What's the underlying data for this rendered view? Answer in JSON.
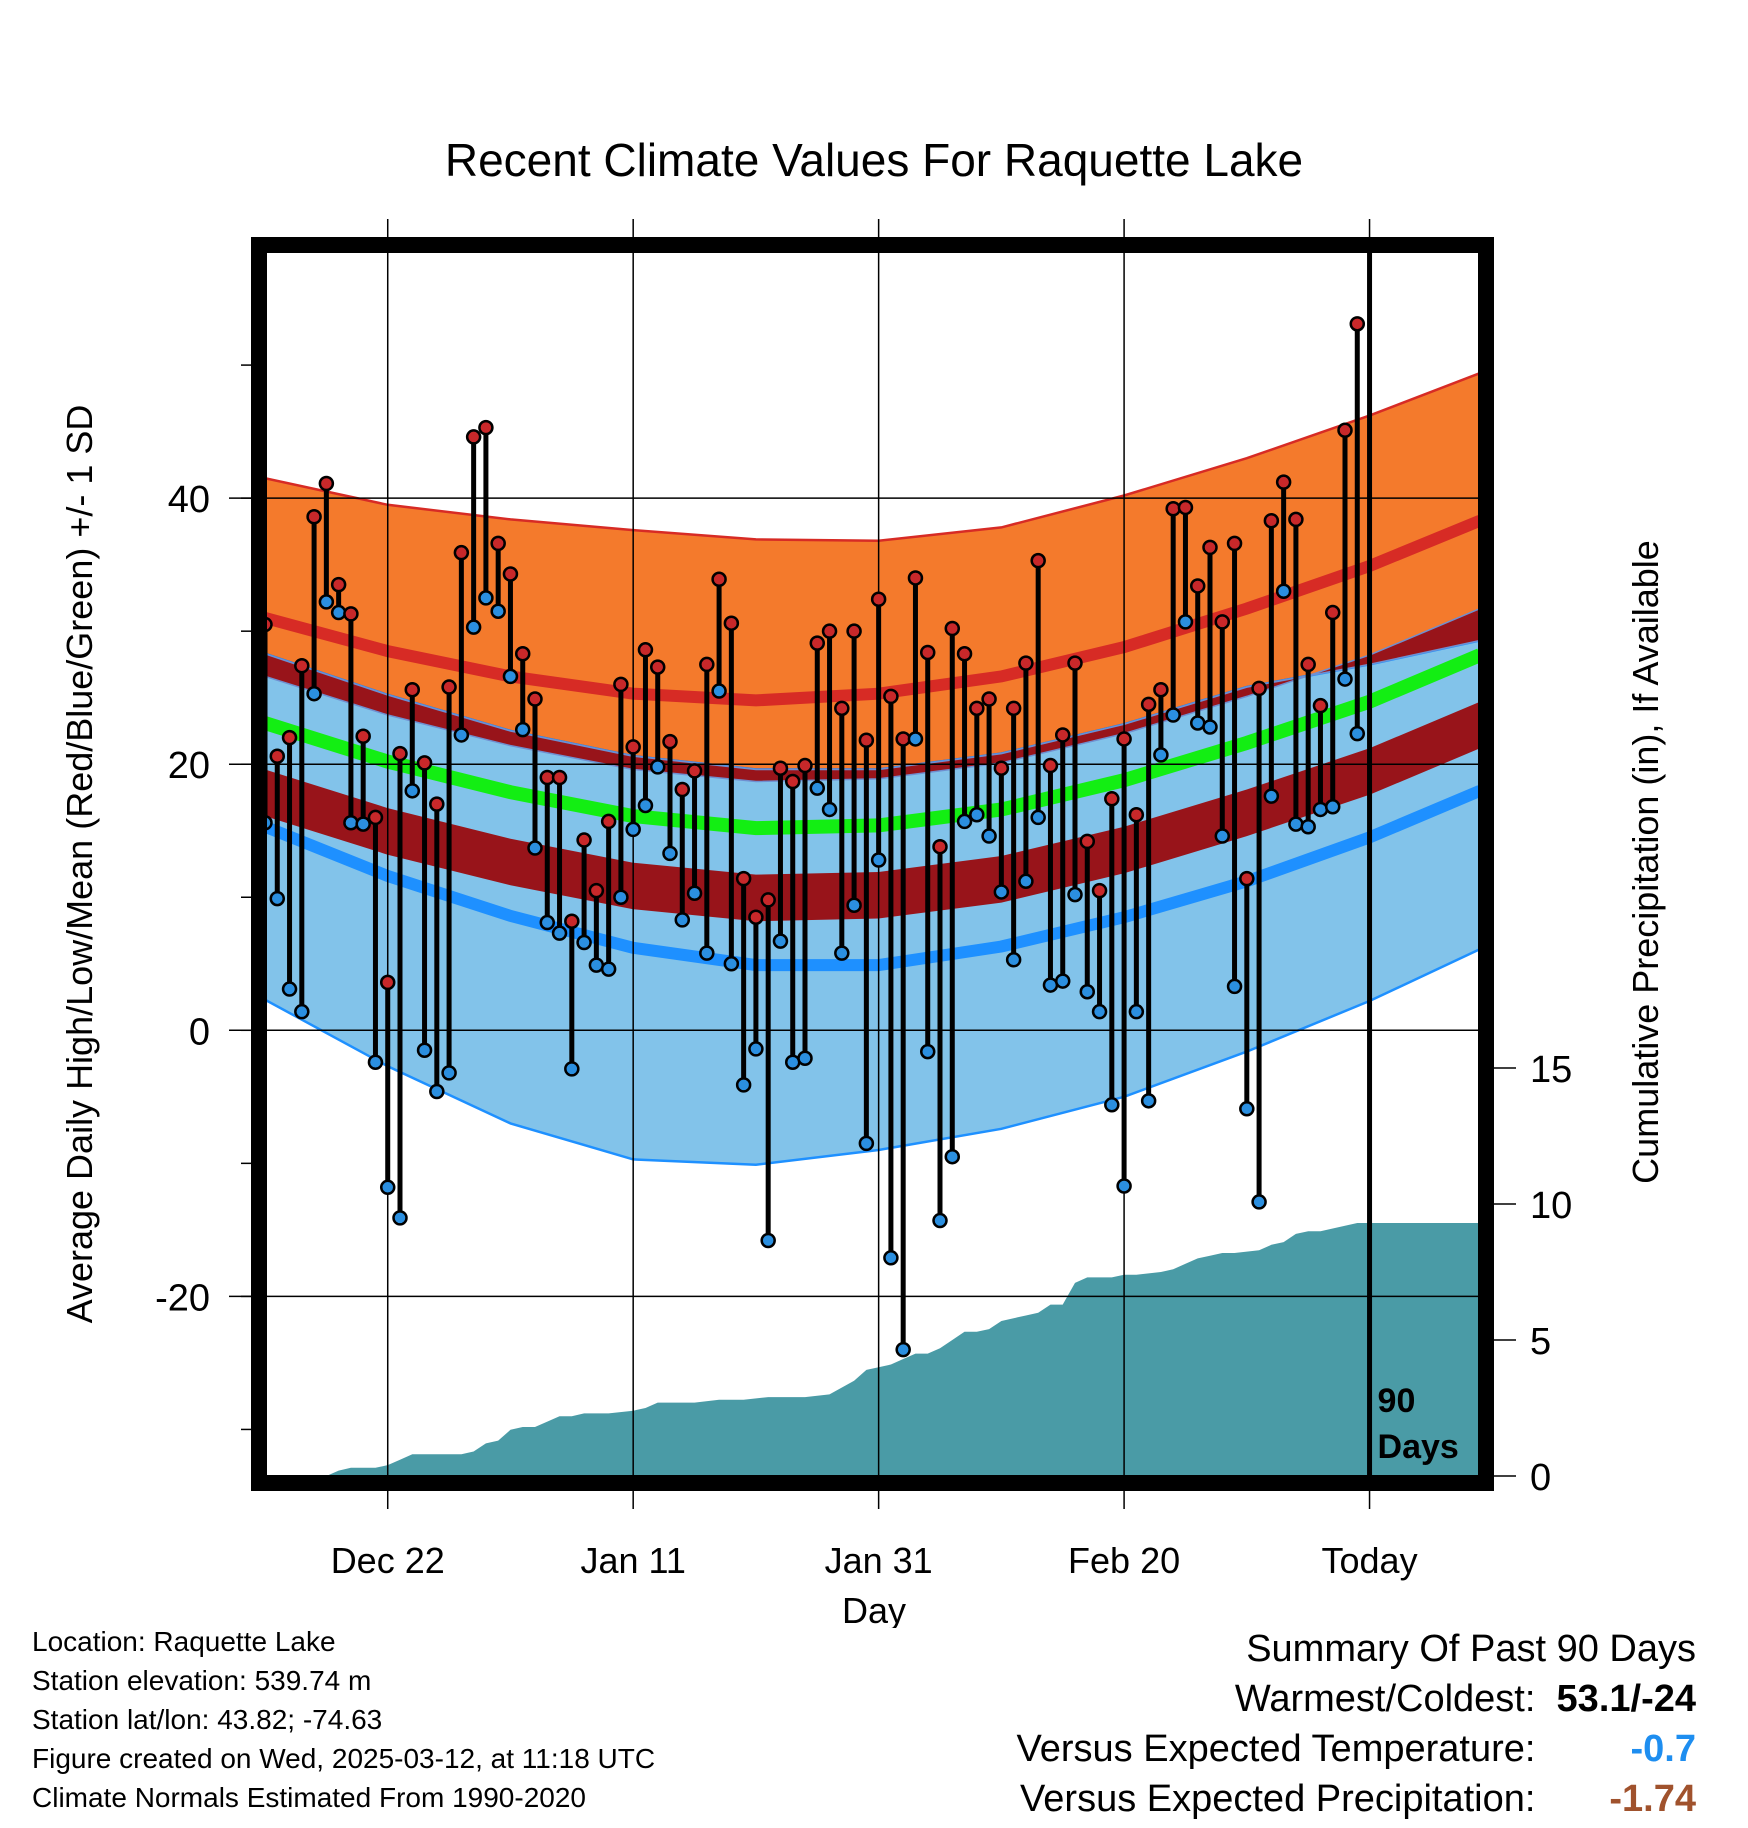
{
  "colors": {
    "high_band": "#f47a2c",
    "high_normal_line": "#d72b25",
    "mean_band": "#98141a",
    "mean_normal_line": "#13ee13",
    "low_band": "#82c3ea",
    "low_normal_line": "#1e90ff",
    "precip_fill": "#4a9ba6",
    "warm_point": "#c8282a",
    "cold_point": "#2b8fe0",
    "temp_departure": "#1e8ef0",
    "precip_departure": "#a0522d"
  },
  "chart_data": {
    "type": "line",
    "title": "Recent Climate Values For Raquette Lake",
    "xlabel": "Day",
    "ylabel": "Average Daily High/Low/Mean (Red/Blue/Green) +/- 1 SD",
    "y2label": "Cumulative Precipitation (in), If Available",
    "x_days_range": [
      1,
      100
    ],
    "today_day": 91,
    "today_label_line1": "90",
    "today_label_line2": "Days",
    "ylim": [
      -33.5,
      58.5
    ],
    "y_ticks": [
      -20,
      0,
      20,
      40
    ],
    "y2lim": [
      0,
      45
    ],
    "y2_ticks": [
      0,
      5,
      10,
      15
    ],
    "x_ticks": [
      {
        "day": 11,
        "label": "Dec 22"
      },
      {
        "day": 31,
        "label": "Jan 11"
      },
      {
        "day": 51,
        "label": "Jan 31"
      },
      {
        "day": 71,
        "label": "Feb 20"
      },
      {
        "day": 91,
        "label": "Today"
      }
    ],
    "normals": {
      "days": [
        1,
        11,
        21,
        31,
        41,
        51,
        61,
        71,
        81,
        91,
        100
      ],
      "high_upper": [
        41.5,
        39.5,
        38.4,
        37.6,
        36.9,
        36.8,
        37.8,
        40.2,
        43.0,
        46.2,
        49.4
      ],
      "high_mean": [
        31.0,
        28.5,
        26.6,
        25.3,
        24.8,
        25.3,
        26.6,
        28.8,
        31.7,
        34.9,
        38.3
      ],
      "mean_normal": [
        23.1,
        20.2,
        17.9,
        16.1,
        15.2,
        15.4,
        16.6,
        18.8,
        21.6,
        24.7,
        28.2
      ],
      "low_upper": [
        28.3,
        25.2,
        22.5,
        20.6,
        19.6,
        19.6,
        20.8,
        23.0,
        25.8,
        27.5,
        29.3
      ],
      "low_mean": [
        15.3,
        11.6,
        8.6,
        6.2,
        4.9,
        4.9,
        6.3,
        8.5,
        11.2,
        14.5,
        18.0
      ],
      "low_lower": [
        2.3,
        -2.7,
        -7.0,
        -9.7,
        -10.1,
        -9.0,
        -7.4,
        -5.0,
        -1.6,
        2.2,
        6.1
      ]
    },
    "series": [
      {
        "name": "High",
        "values": [
          30.5,
          20.6,
          22.0,
          27.4,
          38.6,
          41.1,
          33.5,
          31.3,
          22.1,
          16.0,
          3.6,
          20.8,
          25.6,
          20.1,
          17.0,
          25.8,
          35.9,
          44.6,
          45.3,
          36.6,
          34.3,
          28.3,
          24.9,
          19.0,
          19.0,
          8.2,
          14.3,
          10.5,
          15.7,
          26.0,
          21.3,
          28.6,
          27.3,
          21.7,
          18.1,
          19.5,
          27.5,
          33.9,
          30.6,
          11.4,
          8.5,
          9.8,
          19.7,
          18.7,
          19.9,
          29.1,
          30.0,
          24.2,
          30.0,
          21.8,
          32.4,
          25.1,
          21.9,
          34.0,
          28.4,
          13.8,
          30.2,
          28.3,
          24.2,
          24.9,
          19.7,
          24.2,
          27.6,
          35.3,
          19.9,
          22.2,
          27.6,
          14.2,
          10.5,
          17.4,
          21.9,
          16.2,
          24.5,
          25.6,
          39.2,
          39.3,
          33.4,
          36.3,
          30.7,
          36.6,
          11.4,
          25.7,
          38.3,
          41.2,
          38.4,
          27.5,
          24.4,
          31.4,
          45.1,
          53.1
        ],
        "lows": [
          15.6,
          9.9,
          3.1,
          1.4,
          25.3,
          32.2,
          31.4,
          15.6,
          15.5,
          -2.4,
          -11.8,
          -14.1,
          18.0,
          -1.5,
          -4.6,
          -3.2,
          22.2,
          30.3,
          32.5,
          31.5,
          26.6,
          22.6,
          13.7,
          8.1,
          7.3,
          -2.9,
          6.6,
          4.9,
          4.6,
          10.0,
          15.1,
          16.9,
          19.8,
          13.3,
          8.3,
          10.3,
          5.8,
          25.5,
          5.0,
          -4.1,
          -1.4,
          -15.8,
          6.7,
          -2.4,
          -2.1,
          18.2,
          16.6,
          5.8,
          9.4,
          -8.5,
          12.8,
          -17.1,
          -24.0,
          21.9,
          -1.6,
          -14.3,
          -9.5,
          15.7,
          16.2,
          14.6,
          10.4,
          5.3,
          11.2,
          16.0,
          3.4,
          3.7,
          10.2,
          2.9,
          1.4,
          -5.6,
          -11.7,
          1.4,
          -5.3,
          20.7,
          23.7,
          30.7,
          23.1,
          22.8,
          14.6,
          3.3,
          -5.9,
          -12.9,
          17.6,
          33.0,
          15.5,
          15.3,
          16.6,
          16.8,
          26.4,
          22.3
        ]
      },
      {
        "name": "Cumulative Precipitation",
        "days": [
          1,
          6,
          7,
          8,
          10,
          11,
          12,
          13,
          14,
          17,
          18,
          19,
          20,
          21,
          22,
          23,
          24,
          25,
          26,
          27,
          29,
          31,
          32,
          33,
          34,
          36,
          38,
          40,
          42,
          45,
          47,
          49,
          50,
          51,
          52,
          53,
          54,
          55,
          56,
          57,
          58,
          59,
          60,
          61,
          62,
          63,
          64,
          65,
          66,
          67,
          68,
          69,
          70,
          71,
          72,
          74,
          75,
          76,
          77,
          78,
          79,
          80,
          82,
          83,
          84,
          85,
          86,
          87,
          88,
          89,
          90,
          100
        ],
        "values": [
          0,
          0,
          0.2,
          0.3,
          0.3,
          0.4,
          0.6,
          0.8,
          0.8,
          0.8,
          0.9,
          1.2,
          1.3,
          1.7,
          1.8,
          1.8,
          2.0,
          2.2,
          2.2,
          2.3,
          2.3,
          2.4,
          2.5,
          2.7,
          2.7,
          2.7,
          2.8,
          2.8,
          2.9,
          2.9,
          3.0,
          3.5,
          3.9,
          4.0,
          4.1,
          4.3,
          4.5,
          4.5,
          4.7,
          5.0,
          5.3,
          5.3,
          5.4,
          5.7,
          5.8,
          5.9,
          6.0,
          6.3,
          6.3,
          7.1,
          7.3,
          7.3,
          7.3,
          7.4,
          7.4,
          7.5,
          7.6,
          7.8,
          8.0,
          8.1,
          8.2,
          8.2,
          8.3,
          8.5,
          8.6,
          8.9,
          9.0,
          9.0,
          9.1,
          9.2,
          9.3,
          9.3
        ]
      }
    ]
  },
  "info": {
    "location": "Location: Raquette Lake",
    "elevation": "Station elevation: 539.74 m",
    "latlon": "Station lat/lon: 43.82; -74.63",
    "created": "Figure created on Wed, 2025-03-12, at 11:18 UTC",
    "normals": "Climate Normals Estimated From 1990-2020"
  },
  "summary": {
    "heading": "Summary Of Past 90 Days",
    "warmest_coldest_label": "Warmest/Coldest:",
    "warmest_coldest_value": "53.1/-24",
    "temp_label": "Versus Expected Temperature:",
    "temp_value": "-0.7",
    "precip_label": "Versus Expected Precipitation:",
    "precip_value": "-1.74"
  }
}
